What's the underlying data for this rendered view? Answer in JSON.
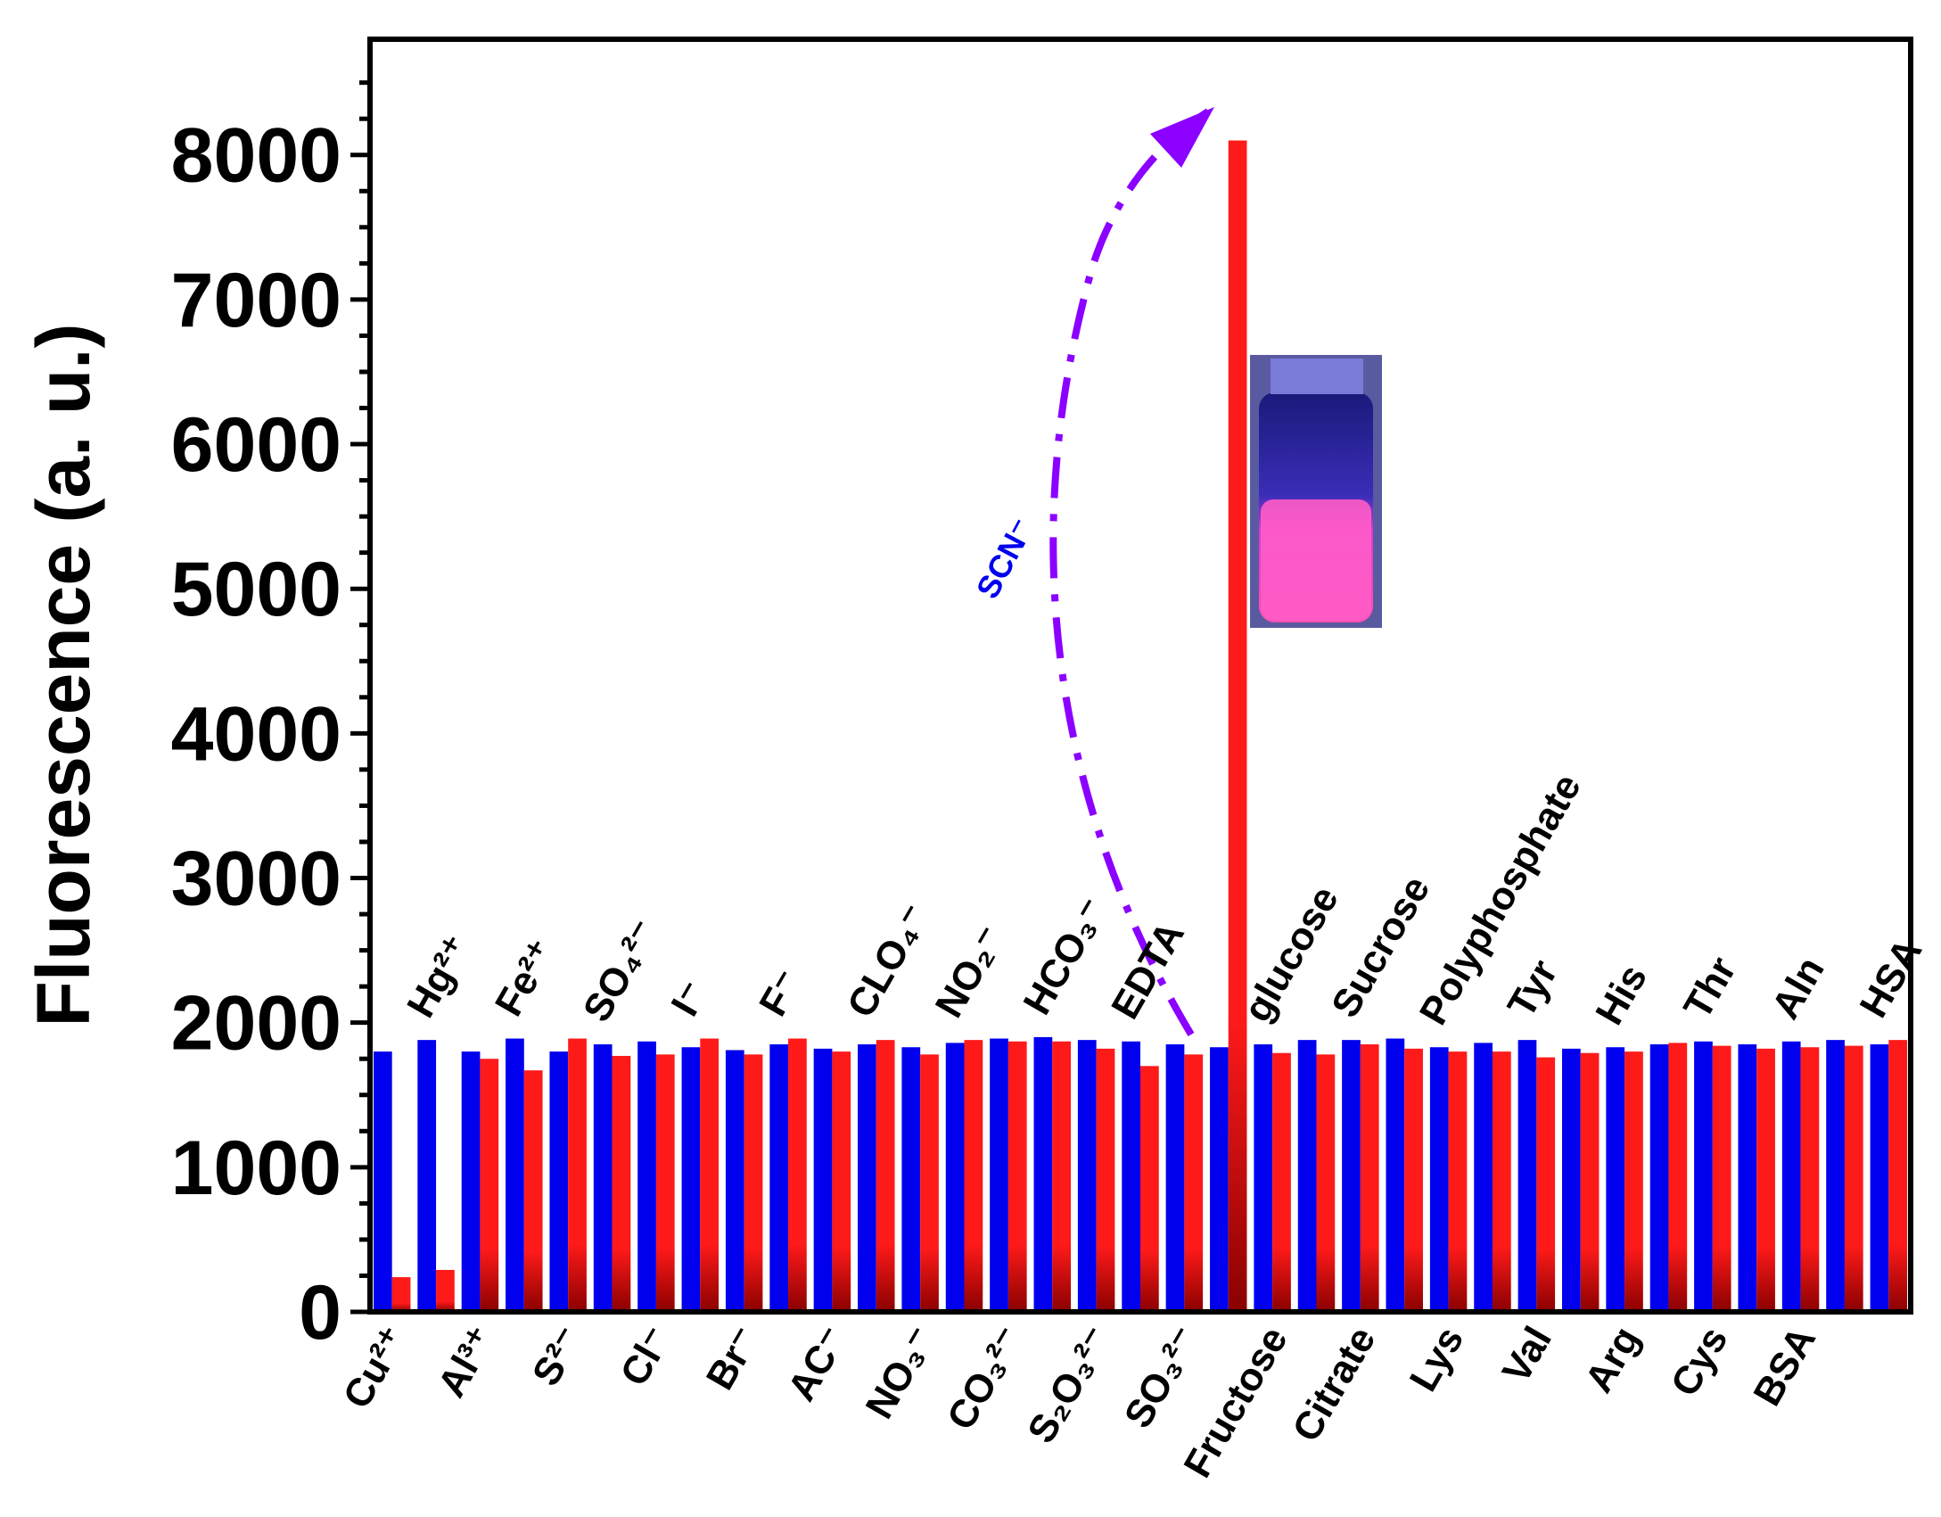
{
  "chart_data": {
    "type": "bar",
    "title": "",
    "xlabel": "",
    "ylabel": "Fluorescence (a. u.)",
    "ylim": [
      0,
      8800
    ],
    "yticks": [
      0,
      1000,
      2000,
      3000,
      4000,
      5000,
      6000,
      7000,
      8000
    ],
    "grid": false,
    "legend": "none",
    "bottom_labels": [
      "Cu²⁺",
      "Al³⁺",
      "S²⁻",
      "Cl⁻",
      "Br⁻",
      "AC⁻",
      "NO₃⁻",
      "CO₃²⁻",
      "S₂O₃²⁻",
      "SO₃²⁻",
      "Fructose",
      "Citrate",
      "Lys",
      "Val",
      "Arg",
      "Cys",
      "BSA"
    ],
    "top_labels": [
      "Hg²⁺",
      "Fe²⁺",
      "SO₄²⁻",
      "I⁻",
      "F⁻",
      "CLO₄⁻",
      "NO₂⁻",
      "HCO₃⁻",
      "EDTA",
      "glucose",
      "Sucrose",
      "Polyphosphate",
      "Tyr",
      "His",
      "Thr",
      "Aln",
      "HSA"
    ],
    "categories": [
      "Cu²⁺",
      "Hg²⁺",
      "Al³⁺",
      "Fe²⁺",
      "S²⁻",
      "SO₄²⁻",
      "Cl⁻",
      "I⁻",
      "Br⁻",
      "F⁻",
      "AC⁻",
      "CLO₄⁻",
      "NO₃⁻",
      "NO₂⁻",
      "CO₃²⁻",
      "HCO₃⁻",
      "S₂O₃²⁻",
      "EDTA",
      "SO₃²⁻",
      "SCN⁻",
      "glucose",
      "Fructose",
      "Sucrose",
      "Citrate",
      "Polyphosphate",
      "Lys",
      "Tyr",
      "Val",
      "His",
      "Arg",
      "Thr",
      "Cys",
      "Aln",
      "BSA",
      "HSA"
    ],
    "series": [
      {
        "name": "blue",
        "color": "#0000ee",
        "values": [
          1800,
          1880,
          1800,
          1890,
          1800,
          1850,
          1870,
          1830,
          1810,
          1850,
          1820,
          1850,
          1830,
          1860,
          1890,
          1900,
          1880,
          1870,
          1850,
          1830,
          1850,
          1880,
          1880,
          1890,
          1830,
          1860,
          1880,
          1820,
          1830,
          1850,
          1870,
          1850,
          1870,
          1880,
          1850
        ]
      },
      {
        "name": "red",
        "color": "#ff1a1a",
        "values": [
          240,
          290,
          1750,
          1670,
          1890,
          1770,
          1780,
          1890,
          1780,
          1890,
          1800,
          1880,
          1780,
          1880,
          1870,
          1870,
          1820,
          1700,
          1780,
          8100,
          1790,
          1780,
          1850,
          1820,
          1800,
          1800,
          1760,
          1790,
          1800,
          1860,
          1840,
          1820,
          1830,
          1840,
          1880
        ]
      }
    ],
    "annotations": [
      {
        "text": "SCN⁻",
        "target_category": "SCN⁻",
        "arrow_color": "#8b00ff"
      }
    ],
    "inset_image": "photo of vial with pink fluorescence"
  }
}
